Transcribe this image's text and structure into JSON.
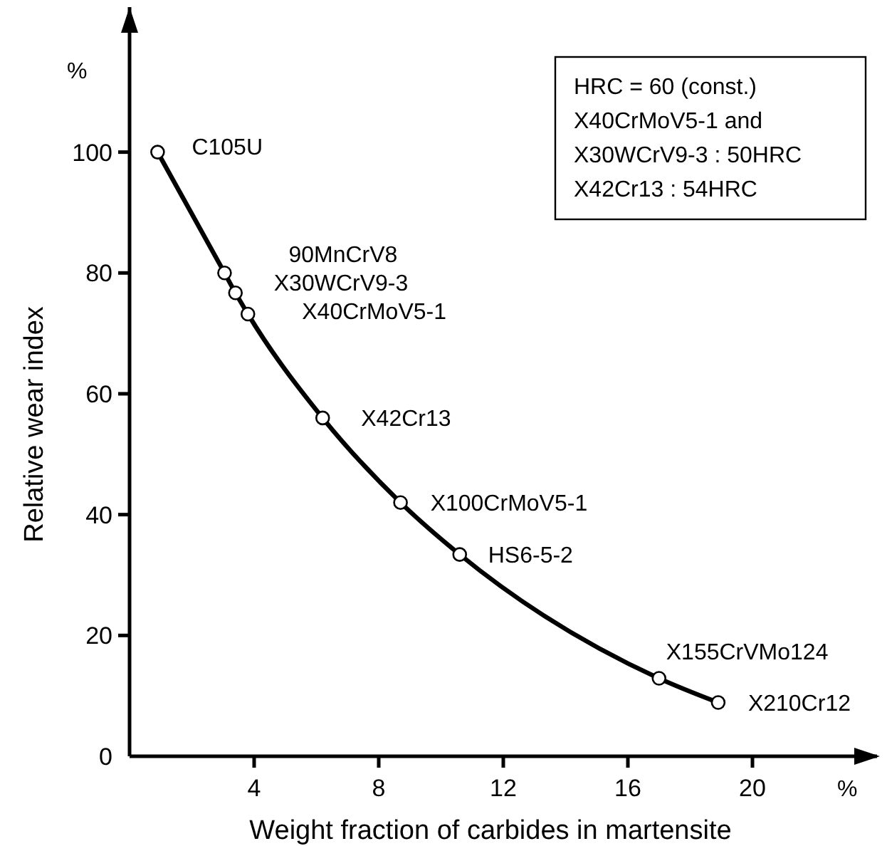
{
  "chart_data": {
    "type": "line",
    "xlabel": "Weight fraction of carbides in martensite",
    "ylabel": "Relative wear index",
    "xlim": [
      0,
      24
    ],
    "ylim": [
      0,
      124
    ],
    "xticks": [
      4,
      8,
      12,
      16,
      20
    ],
    "yticks": [
      0,
      20,
      40,
      60,
      80,
      100
    ],
    "grid": false,
    "marker": "circle",
    "line_style": "solid",
    "series": [
      {
        "color": "#000000",
        "x": [
          0.9,
          3.05,
          3.4,
          3.8,
          6.2,
          8.7,
          10.6,
          17.0,
          18.9
        ],
        "values": [
          100,
          80,
          76.7,
          73.2,
          56,
          42,
          33.4,
          12.9,
          8.9
        ]
      }
    ],
    "annotations": [
      "HRC = 60 (const.)\nX40CrMoV5-1 and\nX30WCrV9-3 : 50HRC\nX42Cr13 : 54HRC",
      "%",
      "%",
      {
        "text": "C105U",
        "x": 0.9,
        "y": 100
      },
      {
        "text": "90MnCrV8",
        "x": 3.05,
        "y": 80
      },
      {
        "text": "X30WCrV9-3",
        "x": 3.4,
        "y": 76.7
      },
      {
        "text": "X40CrMoV5-1",
        "x": 3.8,
        "y": 73.2
      },
      {
        "text": "X42Cr13",
        "x": 6.2,
        "y": 56
      },
      {
        "text": "X100CrMoV5-1",
        "x": 8.7,
        "y": 42
      },
      {
        "text": "HS6-5-2",
        "x": 10.6,
        "y": 33.4
      },
      {
        "text": "X155CrVMo124",
        "x": 17.0,
        "y": 12.9
      },
      {
        "text": "X210Cr12",
        "x": 18.9,
        "y": 8.9
      }
    ]
  }
}
